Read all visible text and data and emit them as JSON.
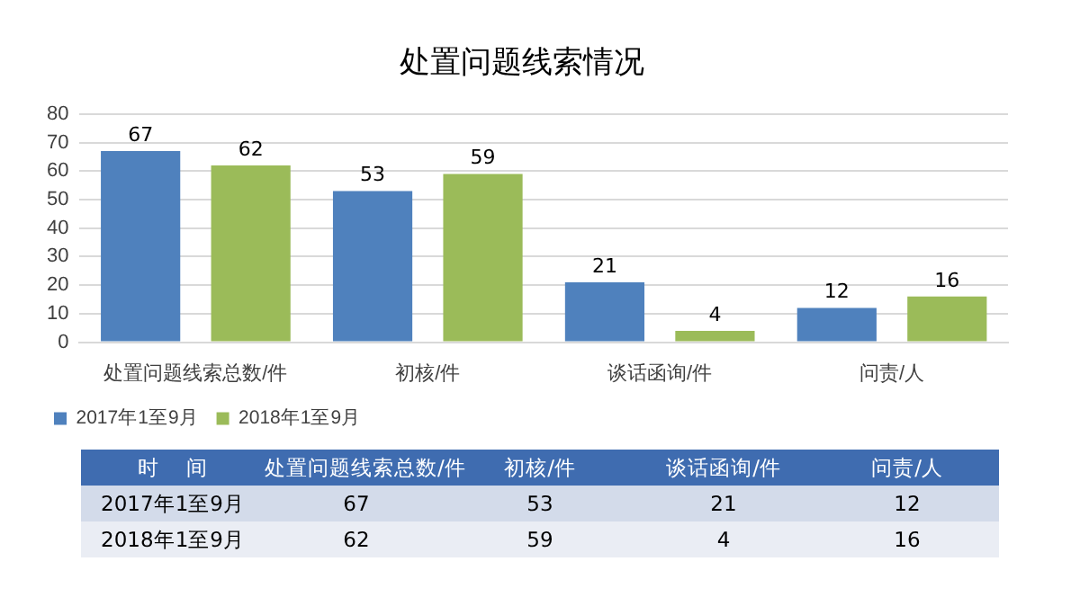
{
  "chart_data": [
    {
      "type": "bar",
      "title": "处置问题线索情况",
      "categories": [
        "处置问题线索总数/件",
        "初核/件",
        "谈话函询/件",
        "问责/人"
      ],
      "series": [
        {
          "name": "2017年1至9月",
          "color": "#4f81bd",
          "values": [
            67,
            53,
            21,
            12
          ]
        },
        {
          "name": "2018年1至9月",
          "color": "#9bbb59",
          "values": [
            62,
            59,
            4,
            16
          ]
        }
      ],
      "ylim": [
        0,
        80
      ],
      "yticks": [
        0,
        10,
        20,
        30,
        40,
        50,
        60,
        70,
        80
      ],
      "grid": "y",
      "legend": "bottom",
      "data_labels": true
    },
    {
      "type": "other",
      "data_labels": true,
      "annotations": [
        "时    间"
      ],
      "categories": [
        "处置问题线索总数/件",
        "初核/件",
        "谈话函询/件",
        "问责/人"
      ],
      "series": [
        {
          "name": "2017年1至9月",
          "values": [
            67,
            53,
            21,
            12
          ]
        },
        {
          "name": "2018年1至9月",
          "values": [
            62,
            59,
            4,
            16
          ]
        }
      ]
    }
  ]
}
